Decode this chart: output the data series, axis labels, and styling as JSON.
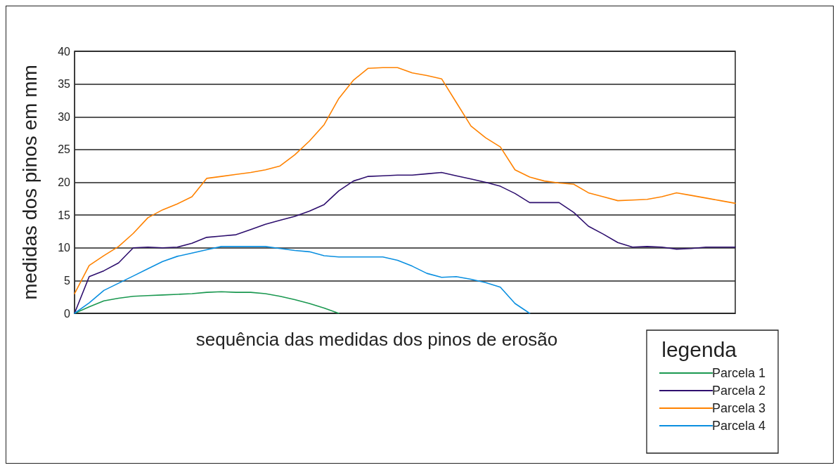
{
  "chart_data": {
    "type": "line",
    "xlabel": "sequência das medidas dos pinos de erosão",
    "ylabel": "medidas dos pinos em mm",
    "legend_title": "legenda",
    "legend": "bottom right",
    "grid": "y",
    "marker": "none",
    "line_style": "solid",
    "ylim": [
      0,
      40
    ],
    "yticks": [
      0,
      5,
      10,
      15,
      20,
      25,
      30,
      35,
      40
    ],
    "categories": [
      null,
      null,
      null,
      null,
      null,
      null,
      null,
      null,
      null,
      null,
      null,
      null,
      null,
      null,
      null,
      null,
      null,
      null,
      null,
      null,
      null,
      null,
      null,
      null,
      null,
      null,
      null,
      null,
      null,
      null,
      null,
      null,
      null,
      null,
      null,
      null,
      null,
      null,
      null,
      null,
      null,
      null,
      null,
      null,
      null,
      null
    ],
    "series": [
      {
        "name": "Parcela 1",
        "color": "#1a9850",
        "values": [
          0,
          1.0,
          1.9,
          2.3,
          2.6,
          2.7,
          2.8,
          2.9,
          3.0,
          3.2,
          3.3,
          3.2,
          3.2,
          3.0,
          2.6,
          2.1,
          1.5,
          0.8,
          0,
          null,
          null,
          null,
          null,
          null,
          null,
          null,
          null,
          null,
          null,
          null,
          null,
          null,
          null,
          null,
          null,
          null,
          null,
          null,
          null,
          null,
          null,
          null,
          null,
          null,
          null,
          null
        ]
      },
      {
        "name": "Parcela 2",
        "color": "#2e0f6e",
        "values": [
          0,
          5.6,
          6.5,
          7.7,
          10.0,
          10.1,
          10,
          10.1,
          10.7,
          11.6,
          11.8,
          12,
          12.8,
          13.6,
          14.2,
          14.8,
          15.6,
          16.6,
          18.7,
          20.2,
          20.9,
          21.0,
          21.1,
          21.1,
          21.3,
          21.5,
          21.0,
          20.5,
          20.0,
          19.4,
          18.3,
          16.9,
          16.9,
          16.9,
          15.4,
          13.3,
          12.1,
          10.8,
          10.1,
          10.2,
          10.1,
          9.8,
          9.9,
          10.1,
          10.1,
          10.1
        ]
      },
      {
        "name": "Parcela 3",
        "color": "#ff8200",
        "values": [
          3,
          7.3,
          8.8,
          10.2,
          12.2,
          14.6,
          15.8,
          16.7,
          17.8,
          20.6,
          20.9,
          21.2,
          21.5,
          21.9,
          22.5,
          24.2,
          26.3,
          28.8,
          32.8,
          35.6,
          37.4,
          37.5,
          37.5,
          36.7,
          36.3,
          35.8,
          32.2,
          28.6,
          26.8,
          25.4,
          21.9,
          20.8,
          20.2,
          19.9,
          19.7,
          18.4,
          17.8,
          17.2,
          17.3,
          17.4,
          17.8,
          18.4,
          18.0,
          17.6,
          17.2,
          16.8
        ]
      },
      {
        "name": "Parcela 4",
        "color": "#0a8fe0",
        "values": [
          0,
          1.6,
          3.5,
          4.6,
          5.7,
          6.8,
          7.9,
          8.7,
          9.2,
          9.7,
          10.2,
          10.2,
          10.2,
          10.2,
          9.9,
          9.6,
          9.4,
          8.8,
          8.6,
          8.6,
          8.6,
          8.6,
          8.1,
          7.2,
          6.1,
          5.5,
          5.6,
          5.2,
          4.7,
          4.0,
          1.5,
          0,
          null,
          null,
          null,
          null,
          null,
          null,
          null,
          null,
          null,
          null,
          null,
          null,
          null,
          null
        ]
      }
    ]
  }
}
